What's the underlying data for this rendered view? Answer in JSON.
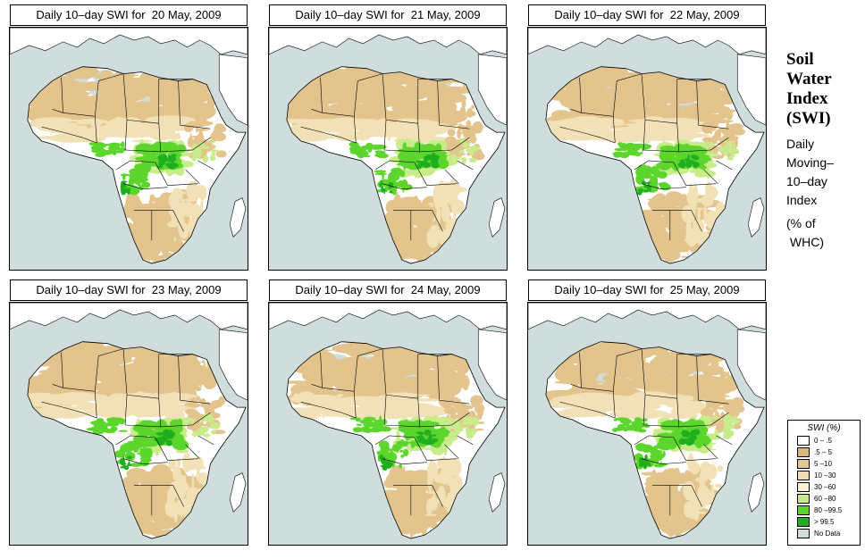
{
  "panels": [
    {
      "title": "Daily 10–day SWI for  20 May, 2009",
      "variant": 0
    },
    {
      "title": "Daily 10–day SWI for  21 May, 2009",
      "variant": 1
    },
    {
      "title": "Daily 10–day SWI for  22 May, 2009",
      "variant": 2
    },
    {
      "title": "Daily 10–day SWI for  23 May, 2009",
      "variant": 3
    },
    {
      "title": "Daily 10–day SWI for  24 May, 2009",
      "variant": 4
    },
    {
      "title": "Daily 10–day SWI for  25 May, 2009",
      "variant": 5
    }
  ],
  "side": {
    "title_lines": [
      "Soil",
      "Water",
      "Index",
      "(SWI)"
    ],
    "subtitle_lines": [
      "Daily",
      "Moving–",
      "10–day",
      "Index"
    ],
    "unit_lines": [
      "(% of",
      " WHC)"
    ]
  },
  "legend": {
    "title": "SWI (%)",
    "items": [
      {
        "label": "0 – .5",
        "color": "#ffffff"
      },
      {
        "label": ".5 – 5",
        "color": "#d9b87c"
      },
      {
        "label": "5 –10",
        "color": "#e6c792"
      },
      {
        "label": "10 –30",
        "color": "#f0dcb0"
      },
      {
        "label": "30 –60",
        "color": "#fbf3d0"
      },
      {
        "label": "60 –80",
        "color": "#c8ec8a"
      },
      {
        "label": "80 –99.5",
        "color": "#5cd62c"
      },
      {
        "label": "> 99.5",
        "color": "#1fae1f"
      },
      {
        "label": "No Data",
        "color": "#cfdedd"
      }
    ]
  },
  "colors": {
    "ocean": "#cfdedd",
    "land": "#ffffff",
    "nodata": "#cfdedd",
    "dry": "#e3c48d",
    "light_dry": "#f2e0b6",
    "moist": "#c8ec8a",
    "wet": "#5cd62c",
    "very_wet": "#1fae1f",
    "border": "#000000"
  }
}
